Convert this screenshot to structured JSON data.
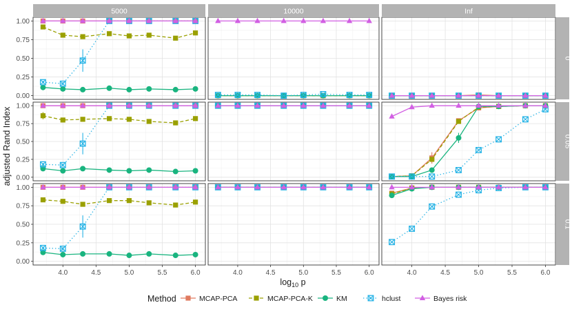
{
  "chart_data": {
    "type": "line",
    "ylabel": "adjusted Rand Index",
    "xlabel_base": "log",
    "xlabel_sub": "10",
    "xlabel_tail": " p",
    "x": [
      3.7,
      4.0,
      4.3,
      4.7,
      5.0,
      5.3,
      5.7,
      6.0
    ],
    "xlim": [
      3.55,
      6.15
    ],
    "ylim": [
      -0.05,
      1.05
    ],
    "x_ticks": [
      4.0,
      4.5,
      5.0,
      5.5,
      6.0
    ],
    "x_tick_labels": [
      "4.0",
      "4.5",
      "5.0",
      "5.5",
      "6.0"
    ],
    "y_ticks": [
      0,
      0.25,
      0.5,
      0.75,
      1.0
    ],
    "y_tick_labels": [
      "0.00",
      "0.25",
      "0.50",
      "0.75",
      "1.00"
    ],
    "col_strips": [
      "5000",
      "10000",
      "Inf"
    ],
    "row_strips": [
      "0",
      "0.05",
      "0.1"
    ],
    "legend": {
      "title": "Method",
      "position": "bottom",
      "entries": [
        "MCAP-PCA",
        "MCAP-PCA-K",
        "KM",
        "hclust",
        "Bayes risk"
      ]
    },
    "series_style": [
      {
        "name": "MCAP-PCA",
        "color": "#E07A5F",
        "shape": "square",
        "dash": "solid"
      },
      {
        "name": "MCAP-PCA-K",
        "color": "#9AA000",
        "shape": "square",
        "dash": "dashed"
      },
      {
        "name": "KM",
        "color": "#19B47F",
        "shape": "circle",
        "dash": "solid"
      },
      {
        "name": "hclust",
        "color": "#26B3E6",
        "shape": "boxx",
        "dash": "dotted"
      },
      {
        "name": "Bayes risk",
        "color": "#D25FE3",
        "shape": "triangle",
        "dash": "solid"
      }
    ],
    "panels": [
      {
        "col": "5000",
        "row": "0",
        "series": [
          {
            "name": "MCAP-PCA",
            "values": [
              1,
              1,
              1,
              1,
              1,
              1,
              1,
              1
            ]
          },
          {
            "name": "MCAP-PCA-K",
            "values": [
              0.92,
              0.81,
              0.79,
              0.83,
              0.8,
              0.81,
              0.77,
              0.84
            ],
            "err": [
              0.03,
              0.03,
              0.02,
              0.02,
              0.02,
              0.02,
              0.02,
              0.03
            ]
          },
          {
            "name": "KM",
            "values": [
              0.11,
              0.09,
              0.08,
              0.1,
              0.08,
              0.09,
              0.08,
              0.09
            ]
          },
          {
            "name": "hclust",
            "values": [
              0.18,
              0.16,
              0.47,
              1,
              1,
              1,
              1,
              1
            ],
            "err": [
              0.02,
              0.02,
              0.15,
              0,
              0,
              0,
              0,
              0
            ]
          },
          {
            "name": "Bayes risk",
            "values": [
              1,
              1,
              1,
              1,
              1,
              1,
              1,
              1
            ]
          }
        ]
      },
      {
        "col": "10000",
        "row": "0",
        "series": [
          {
            "name": "MCAP-PCA",
            "values": [
              0,
              0,
              0,
              0,
              0,
              0,
              0,
              0
            ]
          },
          {
            "name": "MCAP-PCA-K",
            "values": [
              0,
              0,
              0,
              0,
              0,
              0,
              0,
              0
            ]
          },
          {
            "name": "KM",
            "values": [
              0,
              0,
              0,
              0,
              0,
              0,
              0,
              0
            ]
          },
          {
            "name": "hclust",
            "values": [
              0.01,
              0.01,
              0.01,
              0,
              0.01,
              0.02,
              0.01,
              0.01
            ]
          },
          {
            "name": "Bayes risk",
            "values": [
              1,
              1,
              1,
              1,
              1,
              1,
              1,
              1
            ]
          }
        ]
      },
      {
        "col": "Inf",
        "row": "0",
        "series": [
          {
            "name": "MCAP-PCA",
            "values": [
              0,
              0,
              0,
              0,
              0.01,
              0,
              0,
              0
            ]
          },
          {
            "name": "MCAP-PCA-K",
            "values": [
              0,
              0,
              0,
              0,
              0,
              0,
              0,
              0
            ]
          },
          {
            "name": "KM",
            "values": [
              0,
              0,
              0,
              0,
              0,
              0,
              0,
              0
            ]
          },
          {
            "name": "hclust",
            "values": [
              0,
              0,
              0,
              0,
              0,
              0,
              0,
              0
            ]
          },
          {
            "name": "Bayes risk",
            "values": [
              0,
              0,
              0,
              0,
              0,
              0,
              0,
              0
            ]
          }
        ]
      },
      {
        "col": "5000",
        "row": "0.05",
        "series": [
          {
            "name": "MCAP-PCA",
            "values": [
              1,
              1,
              1,
              1,
              1,
              1,
              1,
              1
            ]
          },
          {
            "name": "MCAP-PCA-K",
            "values": [
              0.86,
              0.8,
              0.81,
              0.82,
              0.81,
              0.78,
              0.76,
              0.82
            ],
            "err": [
              0.05,
              0.03,
              0.02,
              0.02,
              0.02,
              0.02,
              0.02,
              0.02
            ]
          },
          {
            "name": "KM",
            "values": [
              0.12,
              0.09,
              0.12,
              0.1,
              0.09,
              0.1,
              0.08,
              0.09
            ]
          },
          {
            "name": "hclust",
            "values": [
              0.18,
              0.17,
              0.47,
              1,
              1,
              1,
              1,
              1
            ],
            "err": [
              0.02,
              0.02,
              0.15,
              0,
              0,
              0,
              0,
              0
            ]
          },
          {
            "name": "Bayes risk",
            "values": [
              1,
              1,
              1,
              1,
              1,
              1,
              1,
              1
            ]
          }
        ]
      },
      {
        "col": "10000",
        "row": "0.05",
        "series": [
          {
            "name": "MCAP-PCA",
            "values": [
              1,
              1,
              1,
              1,
              1,
              1,
              1,
              1
            ]
          },
          {
            "name": "MCAP-PCA-K",
            "values": [
              1,
              1,
              1,
              1,
              1,
              1,
              1,
              1
            ]
          },
          {
            "name": "KM",
            "values": [
              1,
              1,
              1,
              1,
              1,
              1,
              1,
              1
            ]
          },
          {
            "name": "hclust",
            "values": [
              1,
              1,
              1,
              1,
              1,
              1,
              1,
              1
            ]
          },
          {
            "name": "Bayes risk",
            "values": [
              1,
              1,
              1,
              1,
              1,
              1,
              1,
              1
            ]
          }
        ]
      },
      {
        "col": "Inf",
        "row": "0.05",
        "series": [
          {
            "name": "MCAP-PCA",
            "values": [
              0.01,
              0.02,
              0.27,
              0.79,
              0.97,
              0.99,
              1,
              1
            ],
            "err": [
              0,
              0,
              0.08,
              0.03,
              0.02,
              0,
              0,
              0
            ]
          },
          {
            "name": "MCAP-PCA-K",
            "values": [
              0.01,
              0.02,
              0.25,
              0.78,
              0.98,
              0.99,
              1,
              1
            ]
          },
          {
            "name": "KM",
            "values": [
              0.01,
              0.01,
              0.1,
              0.55,
              0.99,
              0.99,
              1,
              1
            ],
            "err": [
              0,
              0,
              0.01,
              0.07,
              0,
              0,
              0,
              0
            ]
          },
          {
            "name": "hclust",
            "values": [
              0.01,
              0.01,
              0.01,
              0.1,
              0.38,
              0.53,
              0.81,
              0.95
            ]
          },
          {
            "name": "Bayes risk",
            "values": [
              0.85,
              0.98,
              1,
              1,
              1,
              1,
              1,
              1
            ]
          }
        ]
      },
      {
        "col": "5000",
        "row": "0.1",
        "series": [
          {
            "name": "MCAP-PCA",
            "values": [
              1,
              1,
              1,
              1,
              1,
              1,
              1,
              1
            ]
          },
          {
            "name": "MCAP-PCA-K",
            "values": [
              0.83,
              0.81,
              0.77,
              0.82,
              0.82,
              0.79,
              0.76,
              0.8
            ],
            "err": [
              0.02,
              0.02,
              0.02,
              0.02,
              0.02,
              0.02,
              0.02,
              0.03
            ]
          },
          {
            "name": "KM",
            "values": [
              0.12,
              0.09,
              0.1,
              0.1,
              0.08,
              0.1,
              0.08,
              0.09
            ]
          },
          {
            "name": "hclust",
            "values": [
              0.18,
              0.17,
              0.47,
              1,
              1,
              1,
              1,
              1
            ],
            "err": [
              0.02,
              0.02,
              0.15,
              0,
              0,
              0,
              0,
              0
            ]
          },
          {
            "name": "Bayes risk",
            "values": [
              1,
              1,
              1,
              1,
              1,
              1,
              1,
              1
            ]
          }
        ]
      },
      {
        "col": "10000",
        "row": "0.1",
        "series": [
          {
            "name": "MCAP-PCA",
            "values": [
              1,
              1,
              1,
              1,
              1,
              1,
              1,
              1
            ]
          },
          {
            "name": "MCAP-PCA-K",
            "values": [
              1,
              1,
              1,
              1,
              1,
              1,
              1,
              1
            ]
          },
          {
            "name": "KM",
            "values": [
              1,
              1,
              1,
              1,
              1,
              1,
              1,
              1
            ]
          },
          {
            "name": "hclust",
            "values": [
              1,
              1,
              1,
              1,
              1,
              1,
              1,
              1
            ]
          },
          {
            "name": "Bayes risk",
            "values": [
              1,
              1,
              1,
              1,
              1,
              1,
              1,
              1
            ]
          }
        ]
      },
      {
        "col": "Inf",
        "row": "0.1",
        "series": [
          {
            "name": "MCAP-PCA",
            "values": [
              0.92,
              0.99,
              1,
              1,
              1,
              1,
              1,
              1
            ]
          },
          {
            "name": "MCAP-PCA-K",
            "values": [
              0.91,
              0.99,
              1,
              1,
              1,
              1,
              1,
              1
            ]
          },
          {
            "name": "KM",
            "values": [
              0.89,
              0.98,
              1,
              1,
              1,
              1,
              1,
              1
            ]
          },
          {
            "name": "hclust",
            "values": [
              0.26,
              0.44,
              0.74,
              0.9,
              0.96,
              0.99,
              1,
              1
            ]
          },
          {
            "name": "Bayes risk",
            "values": [
              1,
              1,
              1,
              1,
              1,
              1,
              1,
              1
            ]
          }
        ]
      }
    ]
  }
}
